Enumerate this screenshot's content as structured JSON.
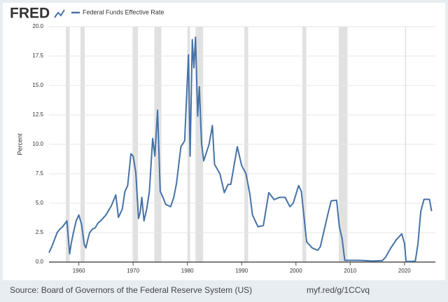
{
  "brand": "FRED",
  "chart_data": {
    "type": "line",
    "y_label": "Percent",
    "x": [
      1954.5,
      1955,
      1955.5,
      1956,
      1956.5,
      1957,
      1957.8,
      1958.3,
      1958.6,
      1959,
      1959.5,
      1960,
      1960.5,
      1961,
      1961.3,
      1961.7,
      1962,
      1962.5,
      1963,
      1963.5,
      1964,
      1965,
      1966,
      1966.8,
      1967.3,
      1968,
      1968.5,
      1969,
      1969.6,
      1970,
      1970.5,
      1971,
      1971.3,
      1971.6,
      1972,
      1972.5,
      1973,
      1973.6,
      1974,
      1974.5,
      1975,
      1975.5,
      1976,
      1976.9,
      1977.5,
      1978,
      1978.8,
      1979.5,
      1980.2,
      1980.5,
      1980.9,
      1981.2,
      1981.5,
      1981.9,
      1982.2,
      1982.6,
      1983,
      1984,
      1984.6,
      1985,
      1986,
      1986.8,
      1987.5,
      1988,
      1989.2,
      1990,
      1990.8,
      1991.5,
      1992,
      1993,
      1994,
      1995,
      1996,
      1997,
      1998,
      1998.9,
      1999.5,
      2000.5,
      2001,
      2001.9,
      2002,
      2003,
      2004,
      2004.5,
      2005,
      2006,
      2006.5,
      2007.5,
      2008,
      2008.5,
      2009,
      2010,
      2012,
      2014,
      2015.9,
      2016.5,
      2017.5,
      2018.5,
      2019.5,
      2020,
      2020.3,
      2022,
      2022.5,
      2023,
      2023.6,
      2024.6,
      2025
    ],
    "series": [
      {
        "name": "Federal Funds Effective Rate",
        "color": "#4572a7",
        "values": [
          0.8,
          1.3,
          1.9,
          2.5,
          2.8,
          3.0,
          3.5,
          0.7,
          1.6,
          2.5,
          3.5,
          4.0,
          3.2,
          1.5,
          1.2,
          2.0,
          2.5,
          2.8,
          2.9,
          3.3,
          3.5,
          4.0,
          4.8,
          5.7,
          3.8,
          4.5,
          6.0,
          6.5,
          9.2,
          9.0,
          7.6,
          3.7,
          4.2,
          5.5,
          3.5,
          4.5,
          6.0,
          10.5,
          9.0,
          12.9,
          6.0,
          5.5,
          4.9,
          4.7,
          5.5,
          6.7,
          9.8,
          10.3,
          17.6,
          9.0,
          18.9,
          16.5,
          19.1,
          12.4,
          14.9,
          10.1,
          8.6,
          10.0,
          11.6,
          8.3,
          7.5,
          5.9,
          6.6,
          6.6,
          9.8,
          8.2,
          7.5,
          5.8,
          4.0,
          3.0,
          3.1,
          5.9,
          5.3,
          5.5,
          5.5,
          4.7,
          5.0,
          6.5,
          6.0,
          2.0,
          1.7,
          1.2,
          1.0,
          1.3,
          2.3,
          4.3,
          5.2,
          5.25,
          3.0,
          2.0,
          0.15,
          0.15,
          0.14,
          0.09,
          0.12,
          0.4,
          1.2,
          1.9,
          2.4,
          1.6,
          0.05,
          0.08,
          1.6,
          4.3,
          5.33,
          5.33,
          4.33
        ]
      }
    ],
    "recessions": {
      "color": "#e1e1e1",
      "spans": [
        [
          1957.6,
          1958.3
        ],
        [
          1960.3,
          1961.1
        ],
        [
          1969.9,
          1970.9
        ],
        [
          1973.9,
          1975.2
        ],
        [
          1980.0,
          1980.5
        ],
        [
          1981.5,
          1982.9
        ],
        [
          1990.5,
          1991.2
        ],
        [
          2001.2,
          2001.9
        ],
        [
          2007.9,
          2009.5
        ],
        [
          2020.1,
          2020.3
        ]
      ]
    },
    "xlim": [
      1954.5,
      2025.7
    ],
    "xticks": [
      1960,
      1970,
      1980,
      1990,
      2000,
      2010,
      2020
    ],
    "ylim": [
      0,
      20
    ],
    "yticks": [
      {
        "value": 0,
        "label": "0.0"
      },
      {
        "value": 2.5,
        "label": "2.5"
      },
      {
        "value": 5,
        "label": "5.0"
      },
      {
        "value": 7.5,
        "label": "7.5"
      },
      {
        "value": 10,
        "label": "10.0"
      },
      {
        "value": 12.5,
        "label": "12.5"
      },
      {
        "value": 15,
        "label": "15.0"
      },
      {
        "value": 17.5,
        "label": "17.5"
      },
      {
        "value": 20,
        "label": "20.0"
      }
    ],
    "grid": true
  },
  "footer": {
    "source": "Source: Board of Governors of the Federal Reserve System (US)",
    "link": "myf.red/g/1CCvq"
  }
}
